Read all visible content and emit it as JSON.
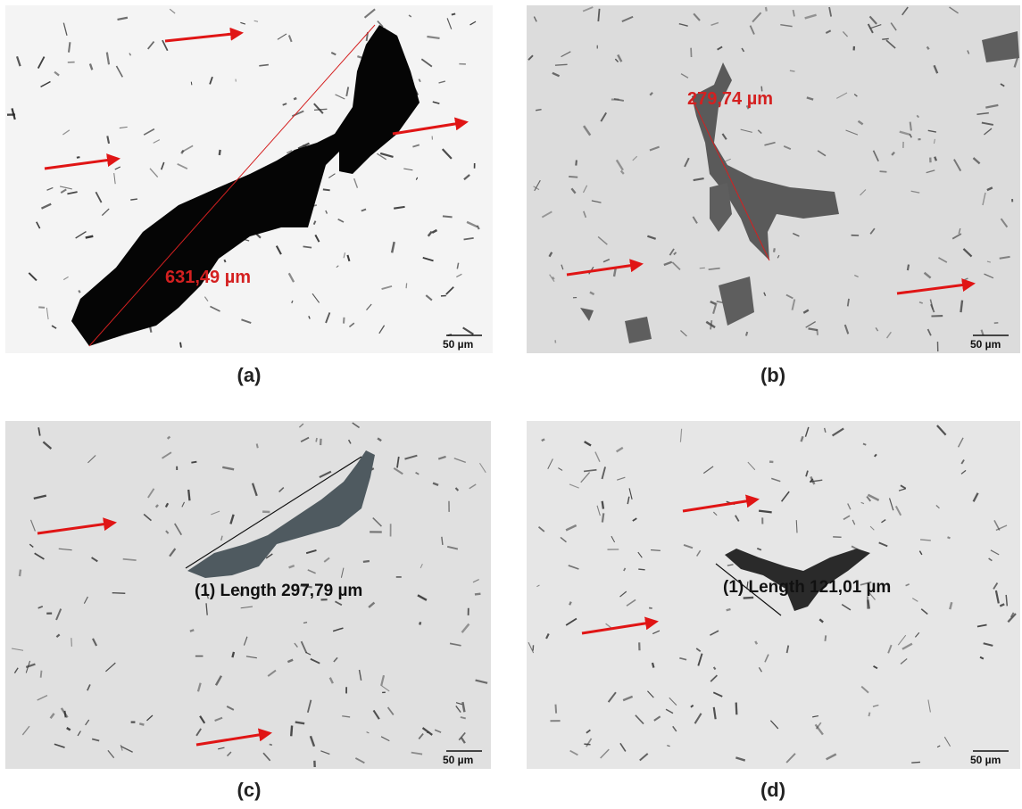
{
  "panels": [
    {
      "label": "(a)",
      "measurement": "631,49 µm",
      "scale_bar": "50 µm"
    },
    {
      "label": "(b)",
      "measurement": "279,74 µm",
      "scale_bar": "50 µm"
    },
    {
      "label": "(c)",
      "measurement": "(1)  Length 297,79 µm",
      "scale_bar": "50 µm"
    },
    {
      "label": "(d)",
      "measurement": "(1)  Length 121,01 µm",
      "scale_bar": "50 µm"
    }
  ]
}
